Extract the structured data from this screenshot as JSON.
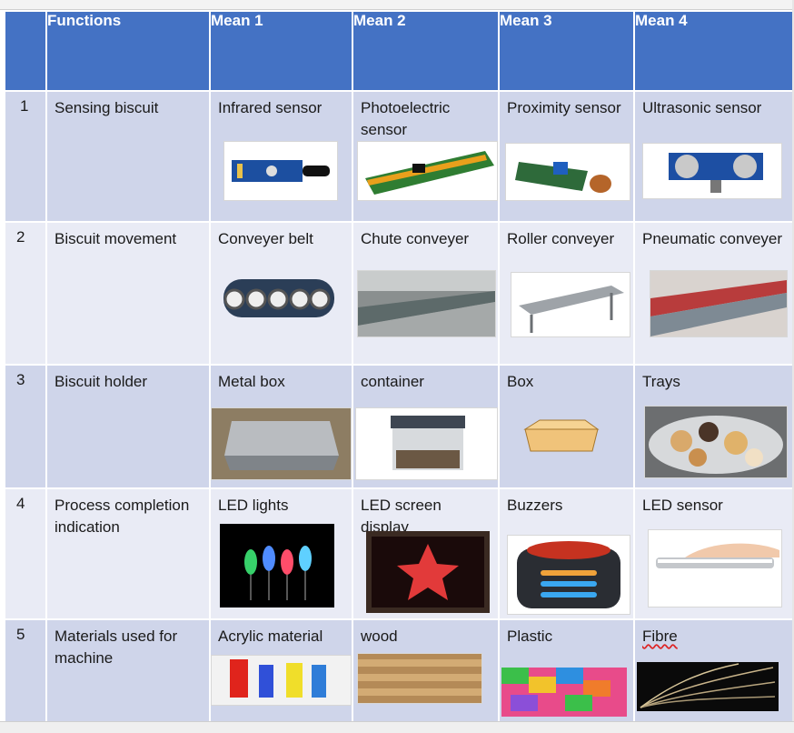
{
  "headers": [
    "",
    "Functions",
    "Mean 1",
    "Mean 2",
    "Mean 3",
    "Mean 4"
  ],
  "rows": [
    {
      "num": "1",
      "function": "Sensing biscuit",
      "means": [
        "Infrared sensor",
        "Photoelectric sensor",
        "Proximity sensor",
        "Ultrasonic sensor"
      ]
    },
    {
      "num": "2",
      "function": "Biscuit movement",
      "means": [
        "Conveyer belt",
        "Chute conveyer",
        "Roller conveyer",
        "Pneumatic conveyer"
      ]
    },
    {
      "num": "3",
      "function": "Biscuit holder",
      "means": [
        "Metal box",
        "container",
        "Box",
        "Trays"
      ]
    },
    {
      "num": "4",
      "function": "Process completion indication",
      "means": [
        "LED lights",
        "LED screen display",
        "Buzzers",
        "LED sensor"
      ]
    },
    {
      "num": "5",
      "function": "Materials used for machine",
      "means": [
        "Acrylic material",
        "wood",
        "Plastic",
        "Fibre"
      ]
    }
  ],
  "colors": {
    "header": "#4472c4",
    "row_dark": "#cfd5ea",
    "row_light": "#e9ebf5"
  }
}
